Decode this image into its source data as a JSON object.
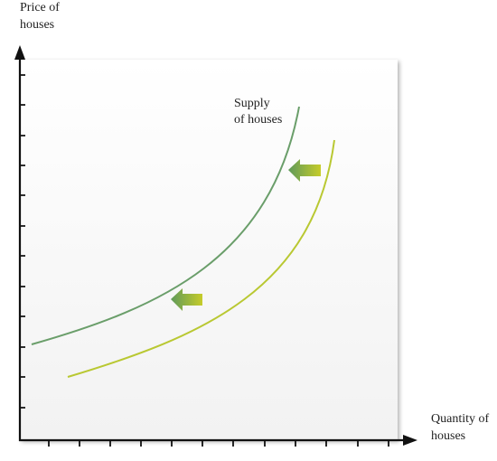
{
  "y_axis_label": [
    "Price of",
    "houses"
  ],
  "x_axis_label": [
    "Quantity of",
    "houses"
  ],
  "curve_label": [
    "Supply",
    "of houses"
  ]
}
